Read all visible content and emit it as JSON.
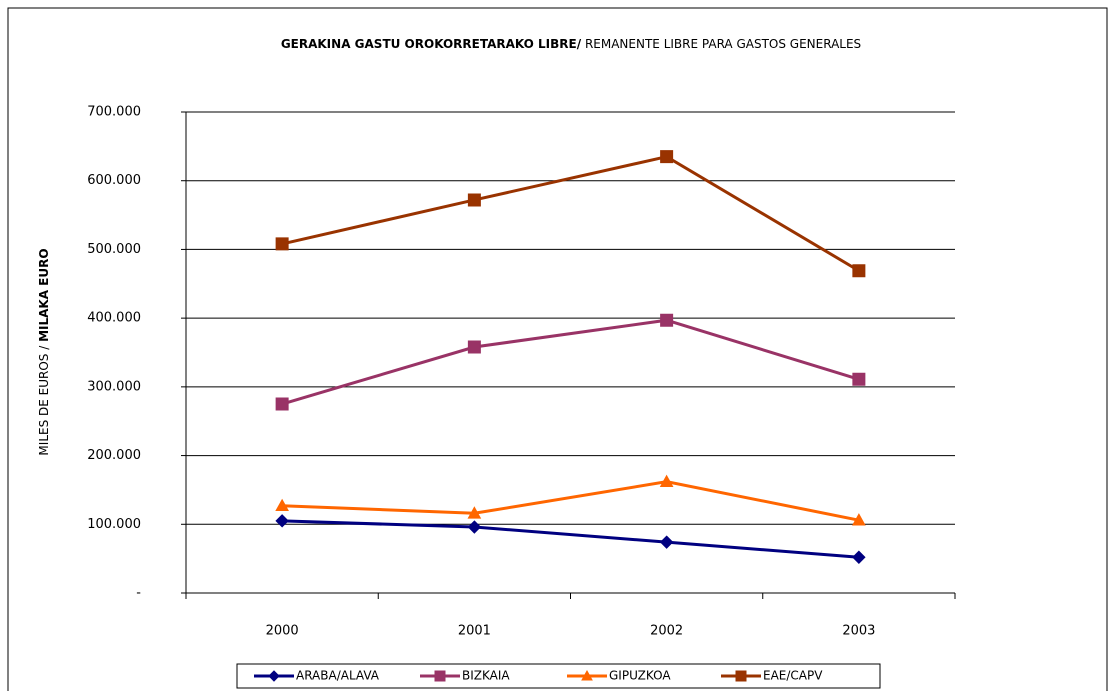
{
  "chart_data": {
    "type": "line",
    "title": [
      "GERAKINA GASTU OROKORRETARAKO LIBRE/",
      "REMANENTE LIBRE PARA GASTOS GENERALES"
    ],
    "y_label": [
      "MILES DE EUROS / ",
      "MILAKA EURO"
    ],
    "categories": [
      "2000",
      "2001",
      "2002",
      "2003"
    ],
    "series": [
      {
        "name": "ARABA/ALAVA",
        "color": "#000080",
        "marker": "diamond",
        "values": [
          105000,
          96000,
          74000,
          52000
        ]
      },
      {
        "name": "BIZKAIA",
        "color": "#993366",
        "marker": "square",
        "values": [
          275000,
          358000,
          397000,
          311000
        ]
      },
      {
        "name": "GIPUZKOA",
        "color": "#ff6600",
        "marker": "triangle",
        "values": [
          127000,
          116000,
          162000,
          106000
        ]
      },
      {
        "name": "EAE/CAPV",
        "color": "#993300",
        "marker": "square",
        "values": [
          508000,
          572000,
          635000,
          469000
        ]
      }
    ],
    "ylim": [
      0,
      700000
    ],
    "yticks": [
      {
        "value": 0,
        "label": "-"
      },
      {
        "value": 100000,
        "label": "100.000"
      },
      {
        "value": 200000,
        "label": "200.000"
      },
      {
        "value": 300000,
        "label": "300.000"
      },
      {
        "value": 400000,
        "label": "400.000"
      },
      {
        "value": 500000,
        "label": "500.000"
      },
      {
        "value": 600000,
        "label": "600.000"
      },
      {
        "value": 700000,
        "label": "700.000"
      }
    ],
    "grid": true,
    "legend": "bottom"
  }
}
